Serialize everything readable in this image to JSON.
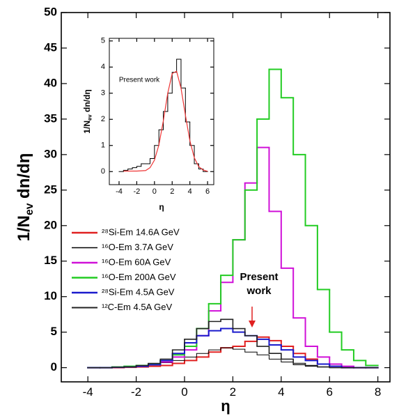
{
  "chart_data": [
    {
      "type": "histogram",
      "xlabel": "η",
      "ylabel": {
        "main": "1/N",
        "sub": "ev",
        "rest": " dn/dη"
      },
      "xlim": [
        -5.1,
        8.5
      ],
      "ylim": [
        -2,
        50
      ],
      "xticks": [
        -4,
        -2,
        0,
        2,
        4,
        6,
        8
      ],
      "yticks": [
        0,
        5,
        10,
        15,
        20,
        25,
        30,
        35,
        40,
        45,
        50
      ],
      "bins": [
        -4,
        -3.5,
        -3,
        -2.5,
        -2,
        -1.5,
        -1,
        -0.5,
        0,
        0.5,
        1,
        1.5,
        2,
        2.5,
        3,
        3.5,
        4,
        4.5,
        5,
        5.5,
        6,
        6.5,
        7,
        7.5,
        8
      ],
      "annotation": [
        "Present",
        "work"
      ],
      "annotation_color": "#e02020",
      "series": [
        {
          "name": "²⁸Si-Em 14.6A GeV",
          "color": "#e02020",
          "label_color": "#e02020",
          "width": 2,
          "values": [
            0,
            0,
            0,
            0.05,
            0.1,
            0.2,
            0.3,
            0.6,
            1,
            1.5,
            2.2,
            2.8,
            3,
            3.7,
            4.3,
            3.8,
            3,
            2,
            1.2,
            0.5,
            0.2,
            0,
            0,
            0
          ]
        },
        {
          "name": "¹⁶O-Em 3.7A GeV",
          "color": "#000000",
          "label_color": "#000000",
          "width": 1,
          "values": [
            0,
            0,
            0.05,
            0.1,
            0.2,
            0.4,
            0.7,
            1,
            1.5,
            2,
            2.5,
            2.8,
            2.6,
            2.2,
            1.8,
            1.2,
            0.8,
            0.4,
            0.2,
            0.1,
            0,
            0,
            0,
            0
          ]
        },
        {
          "name": "¹⁶O-Em 60A GeV",
          "color": "#d010d8",
          "label_color": "#000000",
          "width": 2,
          "values": [
            0,
            0,
            0.05,
            0.1,
            0.2,
            0.4,
            0.8,
            1.5,
            2.5,
            4.5,
            8,
            12,
            18,
            26,
            31,
            22,
            14,
            7,
            3,
            1.5,
            0.5,
            0.2,
            0,
            0
          ]
        },
        {
          "name": "¹⁶O-Em 200A GeV",
          "color": "#22cc22",
          "label_color": "#000000",
          "width": 2,
          "values": [
            0,
            0,
            0.1,
            0.2,
            0.3,
            0.5,
            1,
            1.8,
            3,
            5.5,
            9,
            13,
            18,
            25,
            35,
            42,
            38,
            30,
            20,
            11,
            5,
            2.5,
            1,
            0.3
          ]
        },
        {
          "name": "²⁸Si-Em 4.5A GeV",
          "color": "#1a1acc",
          "label_color": "#000000",
          "width": 2,
          "values": [
            0,
            0,
            0.05,
            0.1,
            0.2,
            0.4,
            1,
            2,
            3.5,
            4.5,
            5.2,
            5.5,
            5,
            4.5,
            4,
            3.2,
            2.5,
            1.5,
            1,
            0.5,
            0.2,
            0,
            0,
            0
          ]
        },
        {
          "name": "¹²C-Em 4.5A GeV",
          "color": "#222222",
          "label_color": "#000000",
          "width": 1.6,
          "values": [
            0,
            0,
            0.05,
            0.1,
            0.3,
            0.6,
            1.2,
            2.5,
            4,
            5.5,
            6.5,
            6.8,
            5.5,
            4.5,
            3,
            2,
            1.2,
            0.6,
            0.3,
            0.1,
            0,
            0,
            0,
            0
          ]
        }
      ]
    },
    {
      "type": "histogram",
      "xlabel": "η",
      "ylabel": {
        "main": "1/N",
        "sub": "ev",
        "rest": " dn/dη"
      },
      "annotation": [
        "Present work"
      ],
      "annotation_color": "#000000",
      "xlim": [
        -5.1,
        6.7
      ],
      "ylim": [
        -0.5,
        5.1
      ],
      "xticks": [
        -4,
        -2,
        0,
        2,
        4,
        6
      ],
      "yticks": [
        0,
        1,
        2,
        3,
        4,
        5
      ],
      "bins": [
        -4,
        -3.5,
        -3,
        -2.5,
        -2,
        -1.5,
        -1,
        -0.5,
        0,
        0.5,
        1,
        1.5,
        2,
        2.5,
        3,
        3.5,
        4,
        4.5,
        5,
        5.5,
        6
      ],
      "series": [
        {
          "color": "#000000",
          "width": 1,
          "values": [
            0,
            0.05,
            0.1,
            0.15,
            0.2,
            0.3,
            0.3,
            0.5,
            1,
            1.6,
            2.3,
            3,
            3.8,
            4.3,
            3.2,
            1.9,
            1,
            0.3,
            0.1,
            0
          ]
        }
      ],
      "curve": {
        "color": "#ee3333",
        "x": [
          -3.5,
          -3,
          -2,
          -1,
          -0.5,
          0,
          0.5,
          1,
          1.5,
          2,
          2.5,
          3,
          3.5,
          4,
          4.5,
          5,
          5.5,
          6
        ],
        "values": [
          0.02,
          0.02,
          0.02,
          0.04,
          0.15,
          0.44,
          1.02,
          1.94,
          3.0,
          3.75,
          3.84,
          3.19,
          2.15,
          1.18,
          0.53,
          0.19,
          0.06,
          0.01
        ]
      }
    }
  ]
}
